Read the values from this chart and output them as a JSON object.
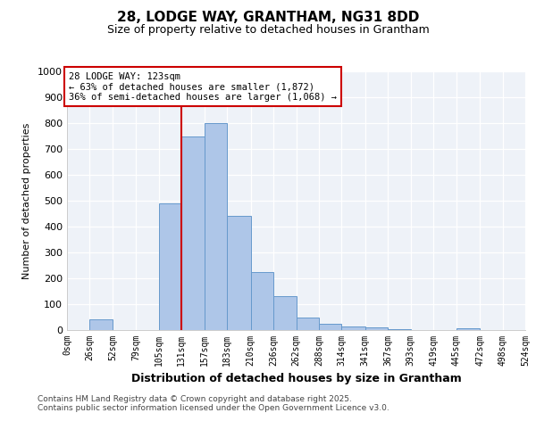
{
  "title1": "28, LODGE WAY, GRANTHAM, NG31 8DD",
  "title2": "Size of property relative to detached houses in Grantham",
  "xlabel": "Distribution of detached houses by size in Grantham",
  "ylabel": "Number of detached properties",
  "bin_labels": [
    "0sqm",
    "26sqm",
    "52sqm",
    "79sqm",
    "105sqm",
    "131sqm",
    "157sqm",
    "183sqm",
    "210sqm",
    "236sqm",
    "262sqm",
    "288sqm",
    "314sqm",
    "341sqm",
    "367sqm",
    "393sqm",
    "419sqm",
    "445sqm",
    "472sqm",
    "498sqm",
    "524sqm"
  ],
  "bin_edges": [
    0,
    26,
    52,
    79,
    105,
    131,
    157,
    183,
    210,
    236,
    262,
    288,
    314,
    341,
    367,
    393,
    419,
    445,
    472,
    498,
    524
  ],
  "values": [
    0,
    40,
    0,
    0,
    490,
    750,
    800,
    440,
    225,
    130,
    50,
    25,
    15,
    10,
    5,
    0,
    0,
    8,
    0,
    0
  ],
  "bar_color": "#aec6e8",
  "bar_edge_color": "#6699cc",
  "vline_x": 131,
  "vline_color": "#cc0000",
  "annotation_text": "28 LODGE WAY: 123sqm\n← 63% of detached houses are smaller (1,872)\n36% of semi-detached houses are larger (1,068) →",
  "annotation_box_color": "#cc0000",
  "ylim": [
    0,
    1000
  ],
  "yticks": [
    0,
    100,
    200,
    300,
    400,
    500,
    600,
    700,
    800,
    900,
    1000
  ],
  "footnote": "Contains HM Land Registry data © Crown copyright and database right 2025.\nContains public sector information licensed under the Open Government Licence v3.0.",
  "bg_color": "#eef2f8"
}
